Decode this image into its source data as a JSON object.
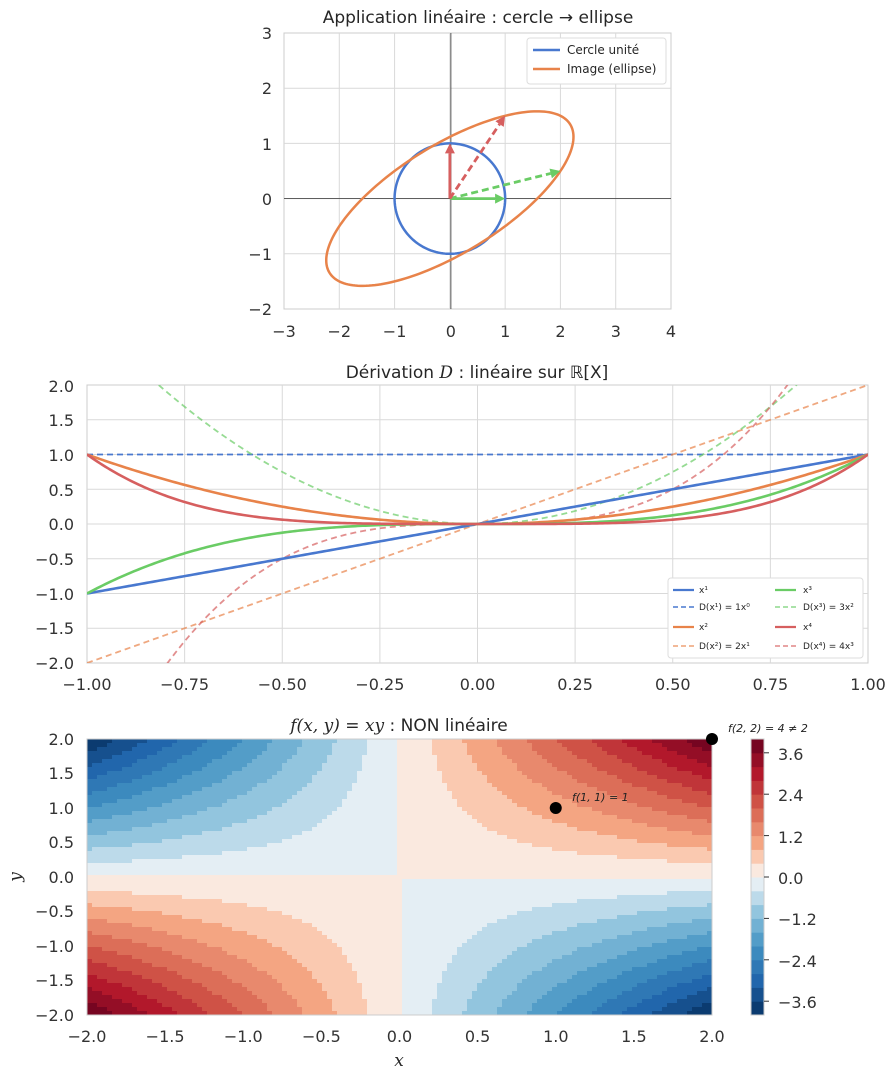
{
  "chart_data": [
    {
      "id": "ellipse",
      "type": "line",
      "title": "Application linéaire : cercle → ellipse",
      "xlim": [
        -3,
        4
      ],
      "ylim": [
        -2,
        3
      ],
      "xticks": [
        "−3",
        "−2",
        "−1",
        "0",
        "1",
        "2",
        "3",
        "4"
      ],
      "yticks": [
        "−2",
        "−1",
        "0",
        "1",
        "2",
        "3"
      ],
      "matrix": [
        [
          2,
          1
        ],
        [
          0.5,
          1.5
        ]
      ],
      "series": [
        {
          "name": "Cercle unité",
          "color": "#4878cf"
        },
        {
          "name": "Image (ellipse)",
          "color": "#e8834a"
        }
      ],
      "vectors": [
        {
          "from": [
            0,
            0
          ],
          "to": [
            1,
            0
          ],
          "style": "solid",
          "color": "#6acc65"
        },
        {
          "from": [
            0,
            0
          ],
          "to": [
            0,
            1
          ],
          "style": "solid",
          "color": "#d65f5f"
        },
        {
          "from": [
            0,
            0
          ],
          "to": [
            2,
            0.5
          ],
          "style": "dashed",
          "color": "#6acc65"
        },
        {
          "from": [
            0,
            0
          ],
          "to": [
            1,
            1.5
          ],
          "style": "dashed",
          "color": "#d65f5f"
        }
      ],
      "grid": true,
      "legend": "top-right"
    },
    {
      "id": "derivation",
      "type": "line",
      "title_text": "Dérivation ",
      "title_var": "D",
      "title_tail": " : linéaire sur ℝ[X]",
      "xlim": [
        -1,
        1
      ],
      "ylim": [
        -2,
        2
      ],
      "xticks": [
        "−1.00",
        "−0.75",
        "−0.50",
        "−0.25",
        "0.00",
        "0.25",
        "0.50",
        "0.75",
        "1.00"
      ],
      "yticks": [
        "−2.0",
        "−1.5",
        "−1.0",
        "−0.5",
        "0.0",
        "0.5",
        "1.0",
        "1.5",
        "2.0"
      ],
      "series": [
        {
          "name": "x¹",
          "power": 1,
          "color": "#4878cf",
          "style": "solid"
        },
        {
          "name": "D(x¹) = 1x⁰",
          "power": 1,
          "derivative": true,
          "color": "#4878cf",
          "style": "dashed"
        },
        {
          "name": "x²",
          "power": 2,
          "color": "#e8834a",
          "style": "solid"
        },
        {
          "name": "D(x²) = 2x¹",
          "power": 2,
          "derivative": true,
          "color": "#e8834a",
          "style": "dashed"
        },
        {
          "name": "x³",
          "power": 3,
          "color": "#6acc65",
          "style": "solid"
        },
        {
          "name": "D(x³) = 3x²",
          "power": 3,
          "derivative": true,
          "color": "#6acc65",
          "style": "dashed"
        },
        {
          "name": "x⁴",
          "power": 4,
          "color": "#d65f5f",
          "style": "solid"
        },
        {
          "name": "D(x⁴) = 4x³",
          "power": 4,
          "derivative": true,
          "color": "#d65f5f",
          "style": "dashed"
        }
      ],
      "grid": true,
      "legend": "bottom-right"
    },
    {
      "id": "nonlinear",
      "type": "heatmap",
      "title_func": "f(x, y) = xy",
      "title_tail": " : NON linéaire",
      "xlabel": "x",
      "ylabel": "y",
      "xlim": [
        -2,
        2
      ],
      "ylim": [
        -2,
        2
      ],
      "xticks": [
        "−2.0",
        "−1.5",
        "−1.0",
        "−0.5",
        "0.0",
        "0.5",
        "1.0",
        "1.5",
        "2.0"
      ],
      "yticks": [
        "−2.0",
        "−1.5",
        "−1.0",
        "−0.5",
        "0.0",
        "0.5",
        "1.0",
        "1.5",
        "2.0"
      ],
      "levels": [
        -4.0,
        -3.6,
        -3.2,
        -2.8,
        -2.4,
        -2.0,
        -1.6,
        -1.2,
        -0.8,
        -0.4,
        0.0,
        0.4,
        0.8,
        1.2,
        1.6,
        2.0,
        2.4,
        2.8,
        3.2,
        3.6,
        4.0
      ],
      "colorbar_ticks": [
        "−3.6",
        "−2.4",
        "−1.2",
        "0.0",
        "1.2",
        "2.4",
        "3.6"
      ],
      "colorbar_values": [
        -3.6,
        -2.4,
        -1.2,
        0.0,
        1.2,
        2.4,
        3.6
      ],
      "points": [
        {
          "x": 1,
          "y": 1,
          "label": "f(1, 1) = 1"
        },
        {
          "x": 2,
          "y": 2,
          "label": "f(2, 2) = 4 ≠ 2",
          "label_color": "#d62728"
        }
      ]
    }
  ]
}
